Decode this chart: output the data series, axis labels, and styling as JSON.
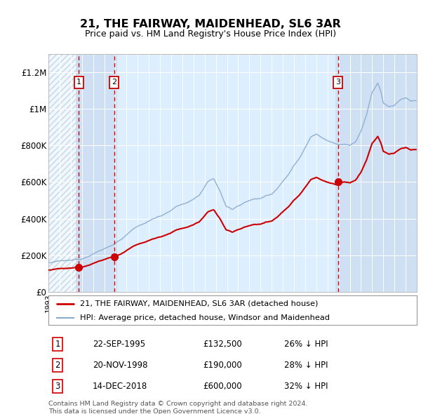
{
  "title": "21, THE FAIRWAY, MAIDENHEAD, SL6 3AR",
  "subtitle": "Price paid vs. HM Land Registry's House Price Index (HPI)",
  "ylim": [
    0,
    1300000
  ],
  "yticks": [
    0,
    200000,
    400000,
    600000,
    800000,
    1000000,
    1200000
  ],
  "ytick_labels": [
    "£0",
    "£200K",
    "£400K",
    "£600K",
    "£800K",
    "£1M",
    "£1.2M"
  ],
  "bg_color": "#ffffff",
  "plot_bg_color": "#ddeeff",
  "grid_color": "#ffffff",
  "transactions": [
    {
      "date_num": 1995.72,
      "price": 132500,
      "label": "1"
    },
    {
      "date_num": 1998.89,
      "price": 190000,
      "label": "2"
    },
    {
      "date_num": 2018.95,
      "price": 600000,
      "label": "3"
    }
  ],
  "transaction_labels": [
    {
      "num": "1",
      "date": "22-SEP-1995",
      "price": "£132,500",
      "pct": "26% ↓ HPI"
    },
    {
      "num": "2",
      "date": "20-NOV-1998",
      "price": "£190,000",
      "pct": "28% ↓ HPI"
    },
    {
      "num": "3",
      "date": "14-DEC-2018",
      "price": "£600,000",
      "pct": "32% ↓ HPI"
    }
  ],
  "legend_line1_label": "21, THE FAIRWAY, MAIDENHEAD, SL6 3AR (detached house)",
  "legend_line1_color": "#cc0000",
  "legend_line2_label": "HPI: Average price, detached house, Windsor and Maidenhead",
  "legend_line2_color": "#88aacc",
  "footer": "Contains HM Land Registry data © Crown copyright and database right 2024.\nThis data is licensed under the Open Government Licence v3.0.",
  "marker_color": "#cc0000",
  "dashed_color": "#cc0000",
  "xmin": 1993,
  "xmax": 2026,
  "hatch_end": 1995.5,
  "highlight_band_color": "#c8d8ee",
  "label_box_color": "#cc0000"
}
